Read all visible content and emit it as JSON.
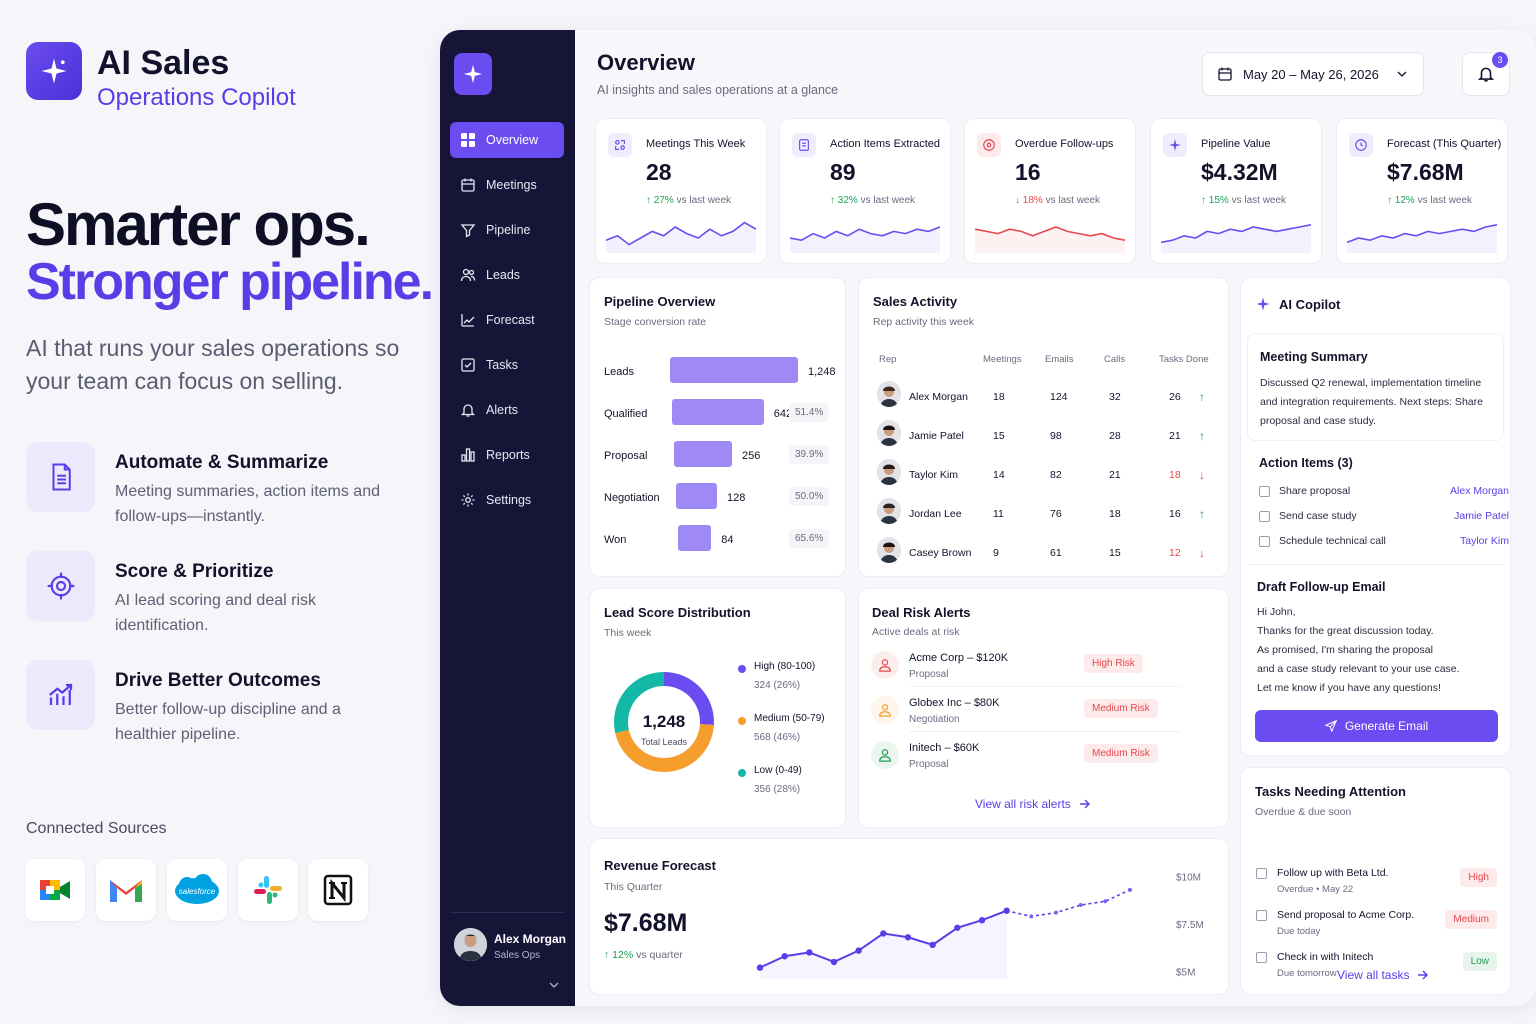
{
  "brand": {
    "title": "AI Sales",
    "subtitle": "Operations Copilot"
  },
  "hero": {
    "line1": "Smarter ops.",
    "line2": "Stronger pipeline.",
    "lead": "AI that runs your sales operations so your team can focus on selling."
  },
  "features": [
    {
      "icon": "document-icon",
      "title": "Automate & Summarize",
      "desc": "Meeting summaries, action items and follow-ups—instantly."
    },
    {
      "icon": "target-icon",
      "title": "Score & Prioritize",
      "desc": "AI lead scoring and deal risk identification."
    },
    {
      "icon": "chart-up-icon",
      "title": "Drive Better Outcomes",
      "desc": "Better follow-up discipline and a healthier pipeline."
    }
  ],
  "sources": {
    "label": "Connected Sources",
    "items": [
      "google-meet-icon",
      "gmail-icon",
      "salesforce-icon",
      "slack-icon",
      "notion-icon"
    ],
    "salesforce_text": "salesforce"
  },
  "sidebar": {
    "items": [
      {
        "label": "Overview",
        "icon": "grid-icon",
        "active": true
      },
      {
        "label": "Meetings",
        "icon": "calendar-icon"
      },
      {
        "label": "Pipeline",
        "icon": "filter-icon"
      },
      {
        "label": "Leads",
        "icon": "users-icon"
      },
      {
        "label": "Forecast",
        "icon": "trend-icon"
      },
      {
        "label": "Tasks",
        "icon": "check-square-icon"
      },
      {
        "label": "Alerts",
        "icon": "bell-icon"
      },
      {
        "label": "Reports",
        "icon": "bar-chart-icon"
      },
      {
        "label": "Settings",
        "icon": "gear-icon"
      }
    ],
    "user": {
      "name": "Alex Morgan",
      "role": "Sales Ops"
    }
  },
  "header": {
    "title": "Overview",
    "subtitle": "AI insights and sales operations at a glance",
    "date_range": "May 20 – May 26, 2026",
    "notifications": "3"
  },
  "kpis": [
    {
      "label": "Meetings This Week",
      "value": "28",
      "change": "27%",
      "note": "vs last week",
      "dir": "up",
      "icon": "meeting-icon"
    },
    {
      "label": "Action Items Extracted",
      "value": "89",
      "change": "32%",
      "note": "vs last week",
      "dir": "up",
      "icon": "clipboard-icon"
    },
    {
      "label": "Overdue Follow-ups",
      "value": "16",
      "change": "18%",
      "note": "vs last week",
      "dir": "down",
      "icon": "alert-circle-icon"
    },
    {
      "label": "Pipeline Value",
      "value": "$4.32M",
      "change": "15%",
      "note": "vs last week",
      "dir": "up",
      "icon": "sparkle-icon"
    },
    {
      "label": "Forecast (This Quarter)",
      "value": "$7.68M",
      "change": "12%",
      "note": "vs last week",
      "dir": "up",
      "icon": "clock-icon"
    }
  ],
  "pipeline": {
    "title": "Pipeline Overview",
    "subtitle": "Stage conversion rate",
    "stages": [
      {
        "label": "Leads",
        "value": "1,248",
        "count": 1248,
        "rate": ""
      },
      {
        "label": "Qualified",
        "value": "642",
        "count": 642,
        "rate": "51.4%"
      },
      {
        "label": "Proposal",
        "value": "256",
        "count": 256,
        "rate": "39.9%"
      },
      {
        "label": "Negotiation",
        "value": "128",
        "count": 128,
        "rate": "50.0%"
      },
      {
        "label": "Won",
        "value": "84",
        "count": 84,
        "rate": "65.6%"
      }
    ]
  },
  "activity": {
    "title": "Sales Activity",
    "subtitle": "Rep activity this week",
    "headers": [
      "Rep",
      "Meetings",
      "Emails",
      "Calls",
      "Tasks Done"
    ],
    "rows": [
      {
        "rep": "Alex Morgan",
        "meetings": "18",
        "emails": "124",
        "calls": "32",
        "tasks": "26",
        "dir": "up"
      },
      {
        "rep": "Jamie Patel",
        "meetings": "15",
        "emails": "98",
        "calls": "28",
        "tasks": "21",
        "dir": "up"
      },
      {
        "rep": "Taylor Kim",
        "meetings": "14",
        "emails": "82",
        "calls": "21",
        "tasks": "18",
        "dir": "down"
      },
      {
        "rep": "Jordan Lee",
        "meetings": "11",
        "emails": "76",
        "calls": "18",
        "tasks": "16",
        "dir": "up"
      },
      {
        "rep": "Casey Brown",
        "meetings": "9",
        "emails": "61",
        "calls": "15",
        "tasks": "12",
        "dir": "down"
      }
    ]
  },
  "copilot": {
    "title": "AI Copilot",
    "summary_title": "Meeting Summary",
    "summary": "Discussed Q2 renewal, implementation timeline and integration requirements. Next steps: Share proposal and case study.",
    "actions_title": "Action Items (3)",
    "actions": [
      {
        "label": "Share proposal",
        "owner": "Alex Morgan"
      },
      {
        "label": "Send case study",
        "owner": "Jamie Patel"
      },
      {
        "label": "Schedule technical call",
        "owner": "Taylor Kim"
      }
    ],
    "draft_title": "Draft Follow-up Email",
    "draft": [
      "Hi John,",
      "Thanks for the great discussion today.",
      "As promised, I'm sharing the proposal",
      "and a case study relevant to your use case.",
      "Let me know if you have any questions!"
    ],
    "button": "Generate Email"
  },
  "lead_score": {
    "title": "Lead Score Distribution",
    "subtitle": "This week",
    "total": "1,248",
    "total_label": "Total Leads",
    "segments": [
      {
        "label": "High (80-100)",
        "value": "324 (26%)",
        "count": 324,
        "color": "#6a4cf0"
      },
      {
        "label": "Medium (50-79)",
        "value": "568 (46%)",
        "count": 568,
        "color": "#f59e2b"
      },
      {
        "label": "Low (0-49)",
        "value": "356 (28%)",
        "count": 356,
        "color": "#14b8a6"
      }
    ]
  },
  "risk": {
    "title": "Deal Risk Alerts",
    "subtitle": "Active deals at risk",
    "items": [
      {
        "deal": "Acme Corp – $120K",
        "stage": "Proposal",
        "level": "High Risk",
        "color": "#e5484d"
      },
      {
        "deal": "Globex Inc – $80K",
        "stage": "Negotiation",
        "level": "Medium Risk",
        "color": "#f59e2b"
      },
      {
        "deal": "Initech – $60K",
        "stage": "Proposal",
        "level": "Medium Risk",
        "color": "#1f9d55"
      }
    ],
    "link": "View all risk alerts"
  },
  "revenue": {
    "title": "Revenue Forecast",
    "subtitle": "This Quarter",
    "value": "$7.68M",
    "change": "12%",
    "note": "vs quarter",
    "chart_data": {
      "type": "line",
      "ylim": [
        4.6,
        10.4
      ],
      "yticks": [
        "$10M",
        "$7.5M",
        "$5M"
      ],
      "series": [
        {
          "values": [
            5.2,
            5.8,
            6.0,
            5.5,
            6.1,
            7.0,
            6.8,
            6.4,
            7.3,
            7.7,
            8.2
          ]
        },
        {
          "values": [
            null,
            null,
            null,
            null,
            null,
            null,
            null,
            null,
            null,
            null,
            8.2,
            7.9,
            8.1,
            8.5,
            8.7,
            9.3
          ]
        }
      ]
    }
  },
  "tasks": {
    "title": "Tasks Needing Attention",
    "subtitle": "Overdue & due soon",
    "items": [
      {
        "label": "Follow up with Beta Ltd.",
        "due": "Overdue • May 22",
        "priority": "High"
      },
      {
        "label": "Send proposal to Acme Corp.",
        "due": "Due today",
        "priority": "Medium"
      },
      {
        "label": "Check in with Initech",
        "due": "Due tomorrow",
        "priority": "Low"
      }
    ],
    "link": "View all tasks"
  }
}
